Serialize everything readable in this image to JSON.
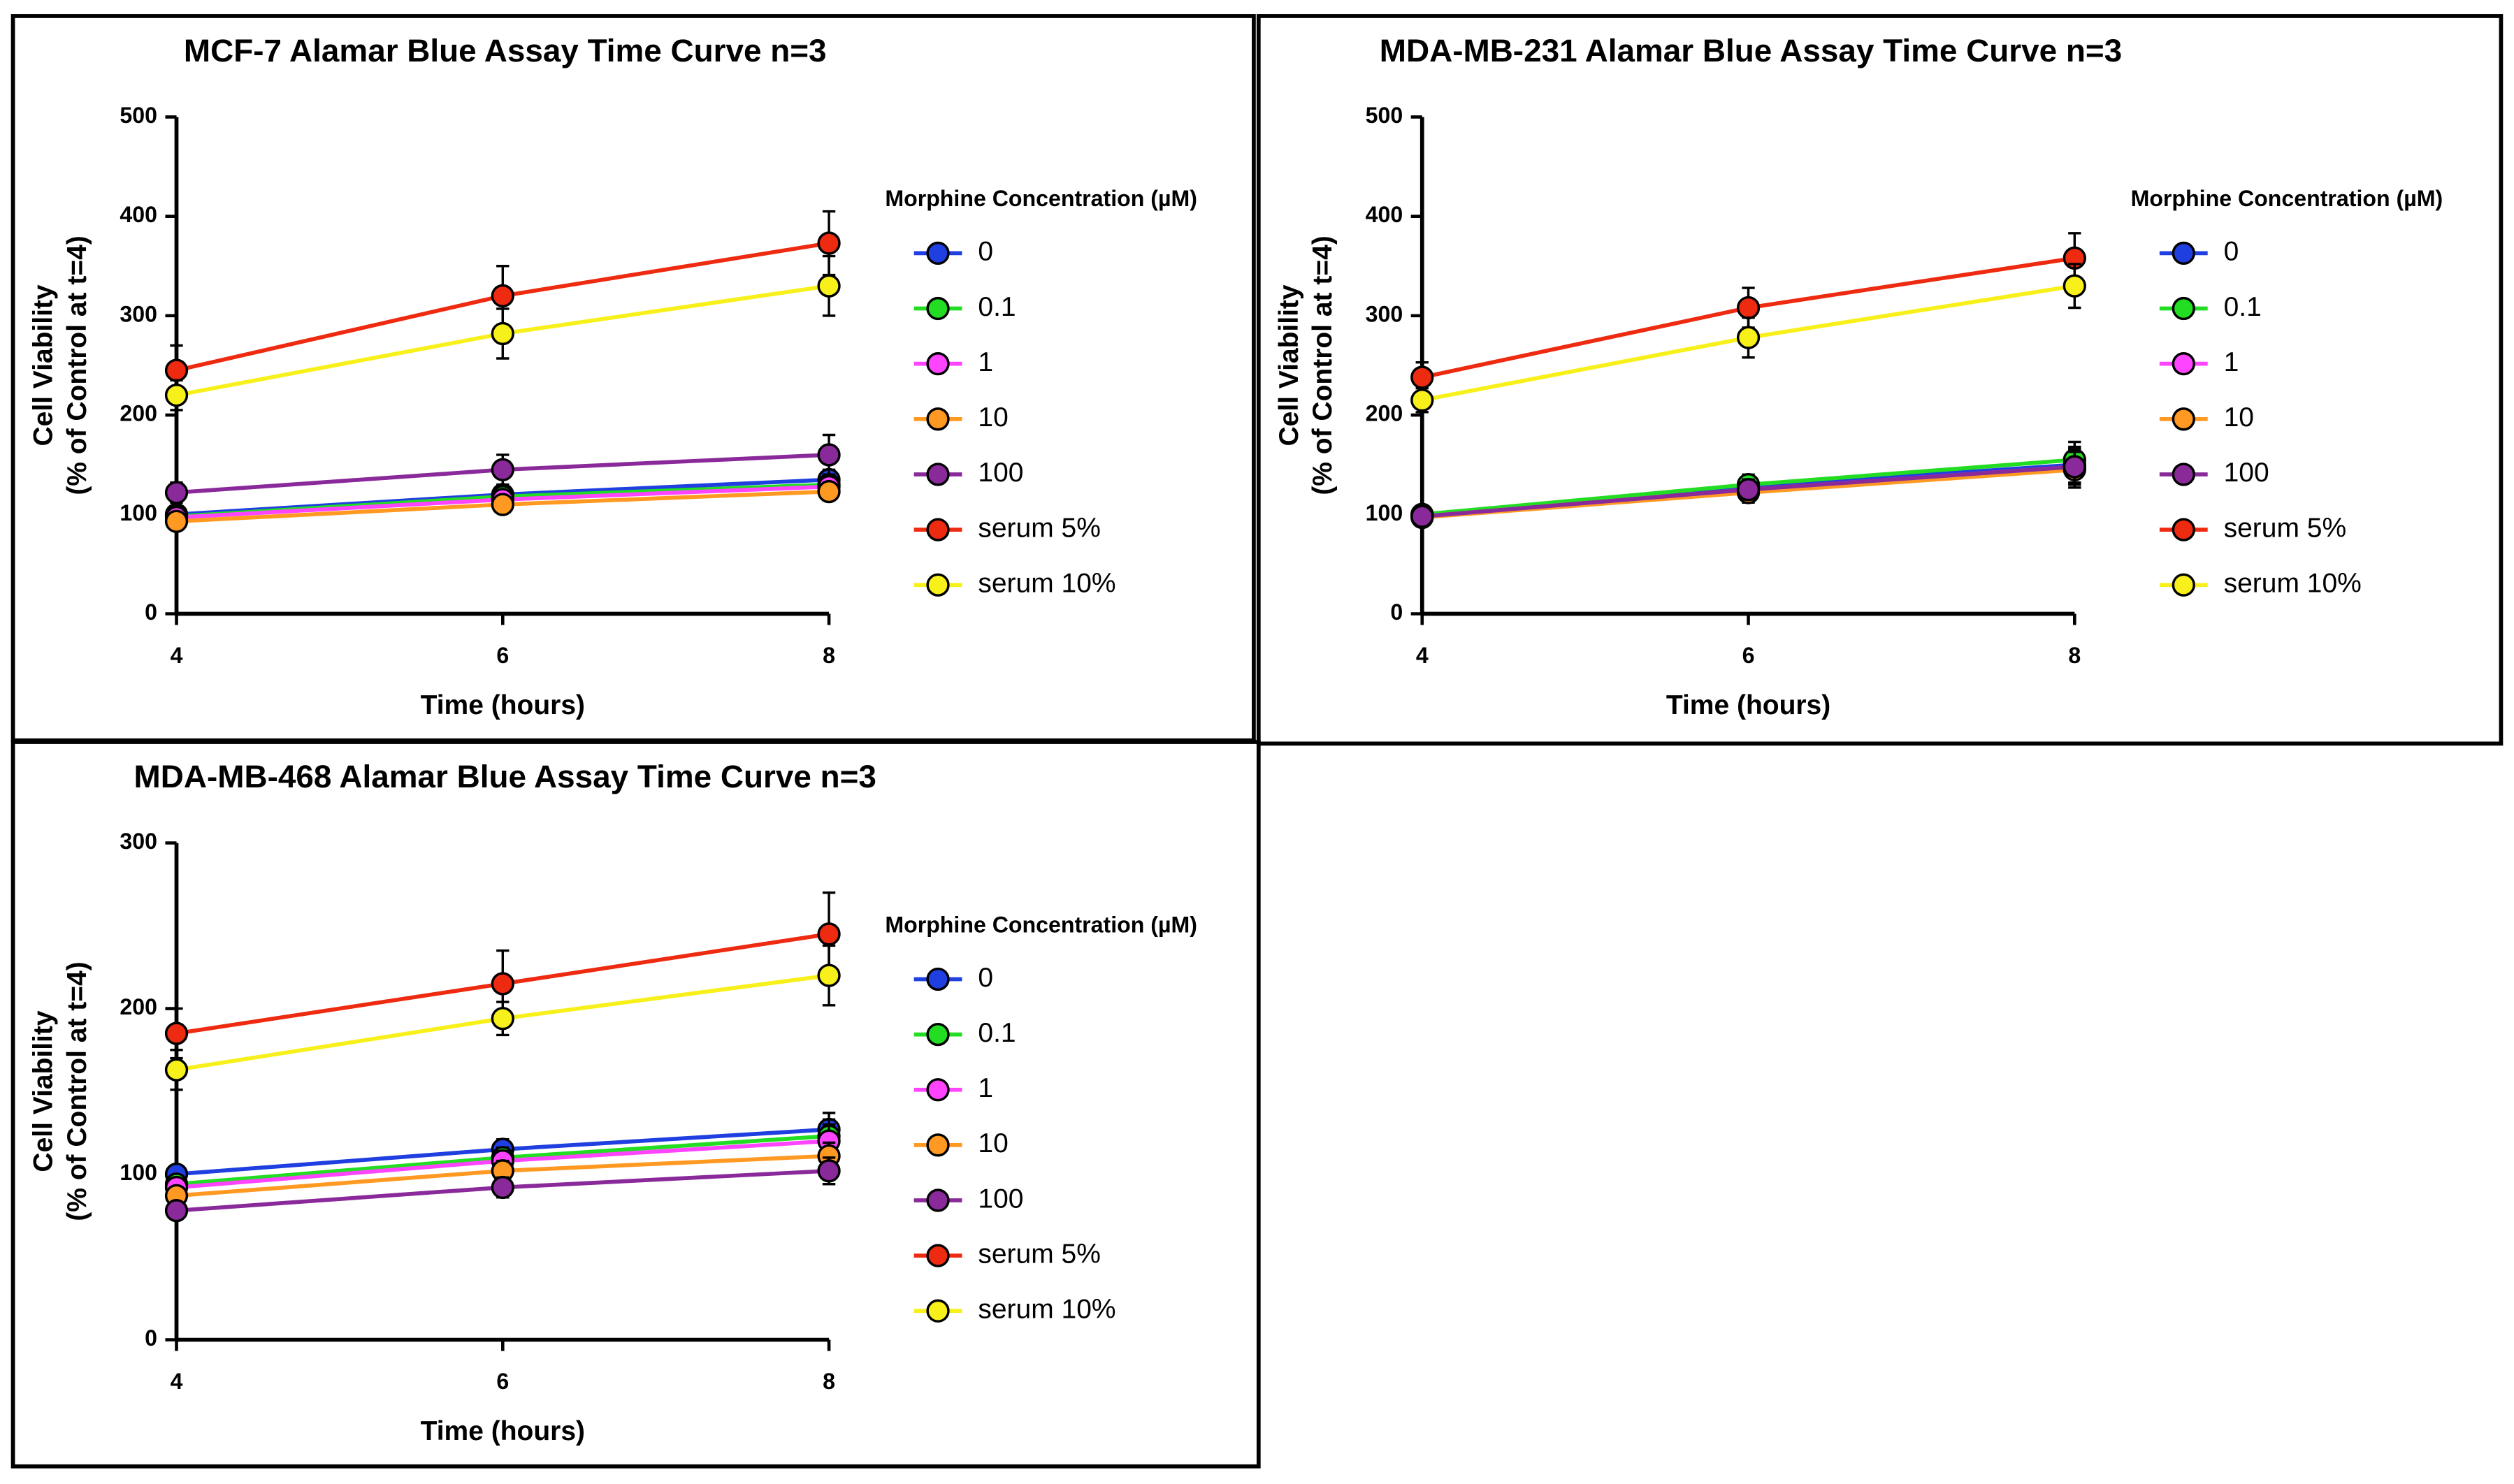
{
  "chart_data": [
    {
      "type": "line",
      "title": "MCF-7 Alamar Blue Assay Time Curve n=3",
      "xlabel": "Time (hours)",
      "ylabel": [
        "Cell Viability",
        "(% of Control at t=4)"
      ],
      "legend_title": "Morphine Concentration (µM)",
      "x": [
        4,
        6,
        8
      ],
      "xlim": [
        4,
        8
      ],
      "xticks": [
        4,
        6,
        8
      ],
      "ylim": [
        0,
        500
      ],
      "yticks": [
        0,
        100,
        200,
        300,
        400,
        500
      ],
      "series": [
        {
          "name": "0",
          "color": "#1f3fe0",
          "values": [
            100,
            120,
            135
          ],
          "errors": [
            6,
            8,
            10
          ]
        },
        {
          "name": "0.1",
          "color": "#22dd22",
          "values": [
            98,
            118,
            130
          ],
          "errors": [
            6,
            8,
            10
          ]
        },
        {
          "name": "1",
          "color": "#ff44ff",
          "values": [
            97,
            115,
            128
          ],
          "errors": [
            6,
            8,
            10
          ]
        },
        {
          "name": "10",
          "color": "#ff9922",
          "values": [
            93,
            110,
            123
          ],
          "errors": [
            6,
            8,
            8
          ]
        },
        {
          "name": "100",
          "color": "#8a2a9a",
          "values": [
            122,
            145,
            160
          ],
          "errors": [
            10,
            15,
            20
          ]
        },
        {
          "name": "serum 5%",
          "color": "#ee2a10",
          "values": [
            245,
            320,
            373
          ],
          "errors": [
            25,
            30,
            32
          ]
        },
        {
          "name": "serum 10%",
          "color": "#f8f01a",
          "values": [
            220,
            282,
            330
          ],
          "errors": [
            15,
            25,
            30
          ]
        }
      ]
    },
    {
      "type": "line",
      "title": "MDA-MB-231 Alamar Blue Assay Time Curve n=3",
      "xlabel": "Time (hours)",
      "ylabel": [
        "Cell Viability",
        "(% of Control at t=4)"
      ],
      "legend_title": "Morphine Concentration (µM)",
      "x": [
        4,
        6,
        8
      ],
      "xlim": [
        4,
        8
      ],
      "xticks": [
        4,
        6,
        8
      ],
      "ylim": [
        0,
        500
      ],
      "yticks": [
        0,
        100,
        200,
        300,
        400,
        500
      ],
      "series": [
        {
          "name": "0",
          "color": "#1f3fe0",
          "values": [
            100,
            128,
            150
          ],
          "errors": [
            6,
            10,
            18
          ]
        },
        {
          "name": "0.1",
          "color": "#22dd22",
          "values": [
            100,
            130,
            155
          ],
          "errors": [
            6,
            10,
            18
          ]
        },
        {
          "name": "1",
          "color": "#ff44ff",
          "values": [
            98,
            125,
            148
          ],
          "errors": [
            6,
            10,
            18
          ]
        },
        {
          "name": "10",
          "color": "#ff9922",
          "values": [
            97,
            122,
            145
          ],
          "errors": [
            6,
            10,
            18
          ]
        },
        {
          "name": "100",
          "color": "#8a2a9a",
          "values": [
            98,
            125,
            148
          ],
          "errors": [
            6,
            10,
            18
          ]
        },
        {
          "name": "serum 5%",
          "color": "#ee2a10",
          "values": [
            238,
            308,
            358
          ],
          "errors": [
            15,
            20,
            25
          ]
        },
        {
          "name": "serum 10%",
          "color": "#f8f01a",
          "values": [
            215,
            278,
            330
          ],
          "errors": [
            12,
            20,
            22
          ]
        }
      ]
    },
    {
      "type": "line",
      "title": "MDA-MB-468 Alamar Blue Assay Time Curve n=3",
      "xlabel": "Time (hours)",
      "ylabel": [
        "Cell Viability",
        "(% of Control at t=4)"
      ],
      "legend_title": "Morphine Concentration (µM)",
      "x": [
        4,
        6,
        8
      ],
      "xlim": [
        4,
        8
      ],
      "xticks": [
        4,
        6,
        8
      ],
      "ylim": [
        0,
        300
      ],
      "yticks": [
        0,
        100,
        200,
        300
      ],
      "series": [
        {
          "name": "0",
          "color": "#1f3fe0",
          "values": [
            100,
            115,
            127
          ],
          "errors": [
            5,
            6,
            10
          ]
        },
        {
          "name": "0.1",
          "color": "#22dd22",
          "values": [
            94,
            110,
            123
          ],
          "errors": [
            5,
            6,
            10
          ]
        },
        {
          "name": "1",
          "color": "#ff44ff",
          "values": [
            92,
            108,
            120
          ],
          "errors": [
            5,
            6,
            10
          ]
        },
        {
          "name": "10",
          "color": "#ff9922",
          "values": [
            87,
            102,
            111
          ],
          "errors": [
            5,
            6,
            8
          ]
        },
        {
          "name": "100",
          "color": "#8a2a9a",
          "values": [
            78,
            92,
            102
          ],
          "errors": [
            5,
            6,
            8
          ]
        },
        {
          "name": "serum 5%",
          "color": "#ee2a10",
          "values": [
            185,
            215,
            245
          ],
          "errors": [
            15,
            20,
            25
          ]
        },
        {
          "name": "serum 10%",
          "color": "#f8f01a",
          "values": [
            163,
            194,
            220
          ],
          "errors": [
            12,
            10,
            18
          ]
        }
      ]
    }
  ]
}
